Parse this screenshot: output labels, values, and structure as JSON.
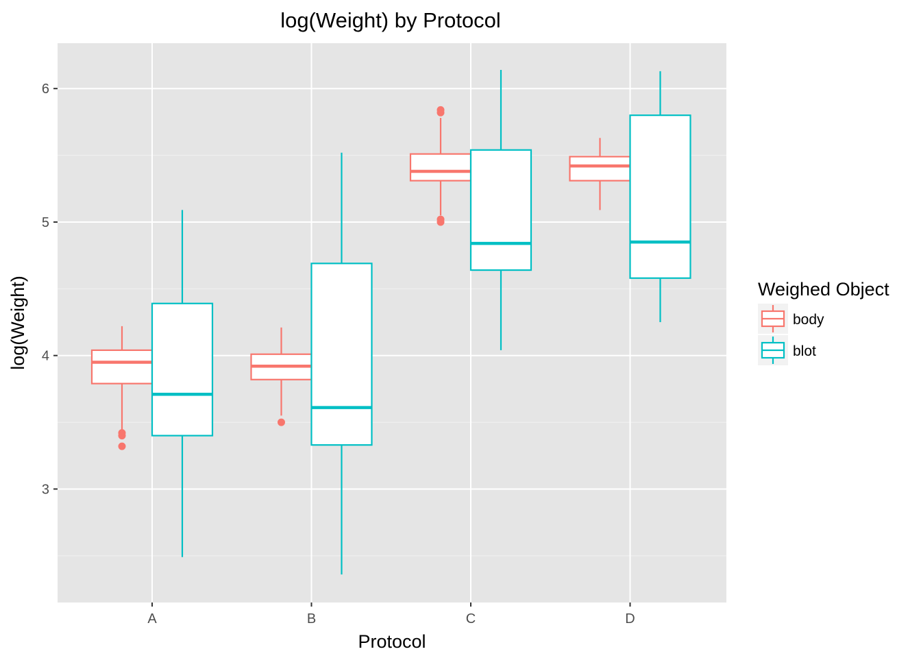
{
  "chart_data": {
    "type": "boxplot",
    "title": "log(Weight) by Protocol",
    "xlabel": "Protocol",
    "ylabel": "log(Weight)",
    "categories": [
      "A",
      "B",
      "C",
      "D"
    ],
    "ylim": [
      2.15,
      6.34
    ],
    "yticks": [
      3,
      4,
      5,
      6
    ],
    "yticks_labels": [
      "3",
      "4",
      "5",
      "6"
    ],
    "grid": true,
    "legend": {
      "title": "Weighed Object",
      "position": "right"
    },
    "series": [
      {
        "name": "body",
        "color": "#F8766D",
        "boxes": [
          {
            "category": "A",
            "whisker_low": 3.44,
            "q1": 3.79,
            "median": 3.95,
            "q3": 4.04,
            "whisker_high": 4.22,
            "outliers": [
              3.42,
              3.4,
              3.32
            ]
          },
          {
            "category": "B",
            "whisker_low": 3.55,
            "q1": 3.82,
            "median": 3.92,
            "q3": 4.01,
            "whisker_high": 4.21,
            "outliers": [
              3.5
            ]
          },
          {
            "category": "C",
            "whisker_low": 5.05,
            "q1": 5.31,
            "median": 5.38,
            "q3": 5.51,
            "whisker_high": 5.78,
            "outliers": [
              5.84,
              5.82,
              5.02,
              5.0
            ]
          },
          {
            "category": "D",
            "whisker_low": 5.09,
            "q1": 5.31,
            "median": 5.42,
            "q3": 5.49,
            "whisker_high": 5.63,
            "outliers": []
          }
        ]
      },
      {
        "name": "blot",
        "color": "#00BFC4",
        "boxes": [
          {
            "category": "A",
            "whisker_low": 2.49,
            "q1": 3.4,
            "median": 3.71,
            "q3": 4.39,
            "whisker_high": 5.09,
            "outliers": []
          },
          {
            "category": "B",
            "whisker_low": 2.36,
            "q1": 3.33,
            "median": 3.61,
            "q3": 4.69,
            "whisker_high": 5.52,
            "outliers": []
          },
          {
            "category": "C",
            "whisker_low": 4.04,
            "q1": 4.64,
            "median": 4.84,
            "q3": 5.54,
            "whisker_high": 6.14,
            "outliers": []
          },
          {
            "category": "D",
            "whisker_low": 4.25,
            "q1": 4.58,
            "median": 4.85,
            "q3": 5.8,
            "whisker_high": 6.13,
            "outliers": []
          }
        ]
      }
    ]
  }
}
